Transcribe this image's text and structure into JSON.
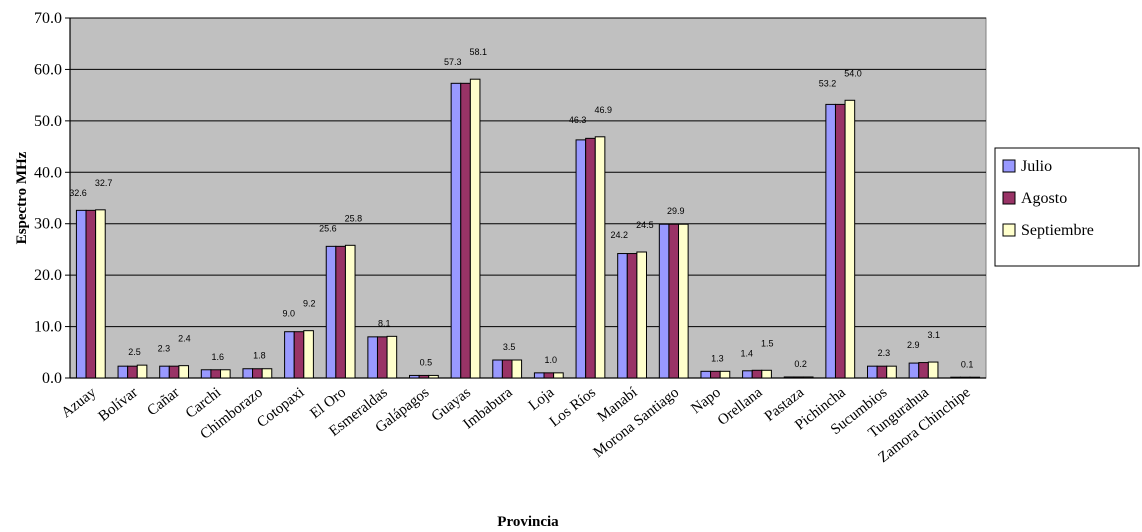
{
  "chart_data": {
    "type": "bar",
    "title": "",
    "xlabel": "Provincia",
    "ylabel": "Espectro MHz",
    "ylim": [
      0,
      70
    ],
    "yticks": [
      "0.0",
      "10.0",
      "20.0",
      "30.0",
      "40.0",
      "50.0",
      "60.0",
      "70.0"
    ],
    "grid": true,
    "legend_position": "right",
    "categories": [
      "Azuay",
      "Bolívar",
      "Cañar",
      "Carchi",
      "Chimborazo",
      "Cotopaxi",
      "El Oro",
      "Esmeraldas",
      "Galápagos",
      "Guayas",
      "Imbabura",
      "Loja",
      "Los Ríos",
      "Manabí",
      "Morona Santiago",
      "Napo",
      "Orellana",
      "Pastaza",
      "Pichincha",
      "Sucumbios",
      "Tungurahua",
      "Zamora Chinchipe"
    ],
    "series": [
      {
        "name": "Julio",
        "color": "#9999ff",
        "values": [
          32.6,
          2.3,
          2.3,
          1.6,
          1.8,
          9.0,
          25.6,
          8.0,
          0.5,
          57.3,
          3.5,
          1.0,
          46.3,
          24.2,
          29.9,
          1.3,
          1.4,
          0.2,
          53.2,
          2.3,
          2.9,
          0.1
        ]
      },
      {
        "name": "Agosto",
        "color": "#993366",
        "values": [
          32.6,
          2.3,
          2.3,
          1.6,
          1.8,
          9.0,
          25.6,
          8.0,
          0.5,
          57.3,
          3.5,
          1.0,
          46.6,
          24.2,
          29.9,
          1.3,
          1.5,
          0.2,
          53.2,
          2.3,
          3.0,
          0.1
        ]
      },
      {
        "name": "Septiembre",
        "color": "#ffffcc",
        "values": [
          32.7,
          2.5,
          2.4,
          1.6,
          1.8,
          9.2,
          25.8,
          8.1,
          0.5,
          58.1,
          3.5,
          1.0,
          46.9,
          24.5,
          29.9,
          1.3,
          1.5,
          0.2,
          54.0,
          2.3,
          3.1,
          0.1
        ]
      }
    ],
    "data_labels": [
      [
        "32.6",
        "32.7"
      ],
      [
        "2.5"
      ],
      [
        "2.3",
        "2.4"
      ],
      [
        "1.6"
      ],
      [
        "1.8"
      ],
      [
        "9.0",
        "9.2"
      ],
      [
        "25.6",
        "25.8"
      ],
      [
        "8.1"
      ],
      [
        "0.5"
      ],
      [
        "57.3",
        "58.1"
      ],
      [
        "3.5"
      ],
      [
        "1.0"
      ],
      [
        "46.3",
        "46.9"
      ],
      [
        "24.2",
        "24.5"
      ],
      [
        "29.9"
      ],
      [
        "1.3"
      ],
      [
        "1.4",
        "1.5"
      ],
      [
        "0.2"
      ],
      [
        "53.2",
        "54.0"
      ],
      [
        "2.3"
      ],
      [
        "2.9",
        "3.1"
      ],
      [
        "0.1"
      ]
    ],
    "colors": {
      "plot_background": "#c0c0c0",
      "gridline": "#000000"
    }
  }
}
